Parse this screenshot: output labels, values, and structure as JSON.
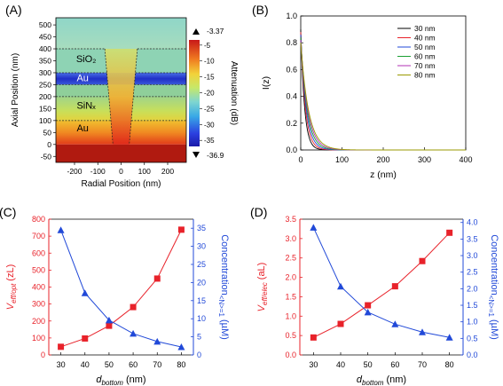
{
  "panels": {
    "A": {
      "label": "(A)"
    },
    "B": {
      "label": "(B)"
    },
    "C": {
      "label": "(C)"
    },
    "D": {
      "label": "(D)"
    }
  },
  "colors": {
    "red": "#e8222a",
    "blue": "#2149d8",
    "gold": "#d4a017"
  },
  "chart_data": [
    {
      "panel": "A",
      "type": "heatmap",
      "xlabel": "Radial Position (nm)",
      "ylabel": "Axial Position (nm)",
      "xlim": [
        -280,
        280
      ],
      "ylim": [
        -75,
        530
      ],
      "xticks": [
        -200,
        -100,
        0,
        100,
        200
      ],
      "yticks": [
        -50,
        0,
        50,
        100,
        150,
        200,
        250,
        300,
        350,
        400,
        450,
        500
      ],
      "layers": [
        {
          "label": "SiO₂",
          "y_from": 300,
          "y_to": 400
        },
        {
          "label": "Au",
          "y_from": 250,
          "y_to": 300
        },
        {
          "label": "SiNₓ",
          "y_from": 100,
          "y_to": 200
        },
        {
          "label": "Au",
          "y_from": 0,
          "y_to": 100
        }
      ],
      "colorbar": {
        "label": "Attenuation (dB)",
        "max_label": "-3.37",
        "min_label": "-36.9",
        "ticks": [
          -5,
          -10,
          -15,
          -20,
          -25,
          -30,
          -35
        ],
        "range": [
          -36.9,
          -3.37
        ]
      }
    },
    {
      "panel": "B",
      "type": "line",
      "xlabel": "z (nm)",
      "ylabel": "I(z)",
      "xlim": [
        0,
        400
      ],
      "ylim": [
        0,
        1.0
      ],
      "xticks": [
        0,
        100,
        200,
        300,
        400
      ],
      "yticks": [
        0.0,
        0.2,
        0.4,
        0.6,
        0.8,
        1.0
      ],
      "legend": "top-right",
      "series": [
        {
          "name": "30 nm",
          "color": "#000000",
          "decay": 9,
          "i0": 0.9
        },
        {
          "name": "40 nm",
          "color": "#e8222a",
          "decay": 11,
          "i0": 0.88
        },
        {
          "name": "50 nm",
          "color": "#2149d8",
          "decay": 13,
          "i0": 0.86
        },
        {
          "name": "60 nm",
          "color": "#1aa033",
          "decay": 15,
          "i0": 0.84
        },
        {
          "name": "70 nm",
          "color": "#b232b5",
          "decay": 17,
          "i0": 0.82
        },
        {
          "name": "80 nm",
          "color": "#9a9a00",
          "decay": 19,
          "i0": 0.8
        }
      ]
    },
    {
      "panel": "C",
      "type": "line",
      "xlabel": "d",
      "xlabel_sub": "bottom",
      "xlabel_unit": "(nm)",
      "categories": [
        30,
        40,
        50,
        60,
        70,
        80
      ],
      "xlim": [
        25,
        85
      ],
      "xticks": [
        30,
        40,
        50,
        60,
        70,
        80
      ],
      "left_axis": {
        "label": "V",
        "label_sub": "eff/opt",
        "label_unit": "(zL)",
        "ylim": [
          0,
          800
        ],
        "ticks": [
          0,
          100,
          200,
          300,
          400,
          500,
          600,
          700,
          800
        ],
        "color": "#e8222a",
        "values": [
          48,
          97,
          172,
          282,
          450,
          738
        ]
      },
      "right_axis": {
        "label": "Concentration",
        "label_sub": "<N>=1",
        "label_unit": "(µM)",
        "ylim": [
          0,
          37.5
        ],
        "ticks": [
          0,
          5,
          10,
          15,
          20,
          25,
          30,
          35
        ],
        "color": "#2149d8",
        "values": [
          34.5,
          17.1,
          9.6,
          5.9,
          3.7,
          2.2
        ]
      }
    },
    {
      "panel": "D",
      "type": "line",
      "xlabel": "d",
      "xlabel_sub": "bottom",
      "xlabel_unit": "(nm)",
      "categories": [
        30,
        40,
        50,
        60,
        70,
        80
      ],
      "xlim": [
        25,
        85
      ],
      "xticks": [
        30,
        40,
        50,
        60,
        70,
        80
      ],
      "left_axis": {
        "label": "V",
        "label_sub": "eff/elec",
        "label_unit": "(aL)",
        "ylim": [
          0,
          3.5
        ],
        "ticks": [
          0.0,
          0.5,
          1.0,
          1.5,
          2.0,
          2.5,
          3.0,
          3.5
        ],
        "color": "#e8222a",
        "values": [
          0.45,
          0.8,
          1.28,
          1.77,
          2.42,
          3.15
        ]
      },
      "right_axis": {
        "label": "Concentration",
        "label_sub": "<N>=1",
        "label_unit": "(µM)",
        "ylim": [
          0,
          4.1
        ],
        "ticks": [
          0.0,
          0.5,
          1.0,
          1.5,
          2.0,
          2.5,
          3.0,
          3.5,
          4.0
        ],
        "color": "#2149d8",
        "values": [
          3.85,
          2.07,
          1.29,
          0.93,
          0.69,
          0.53
        ]
      }
    }
  ]
}
